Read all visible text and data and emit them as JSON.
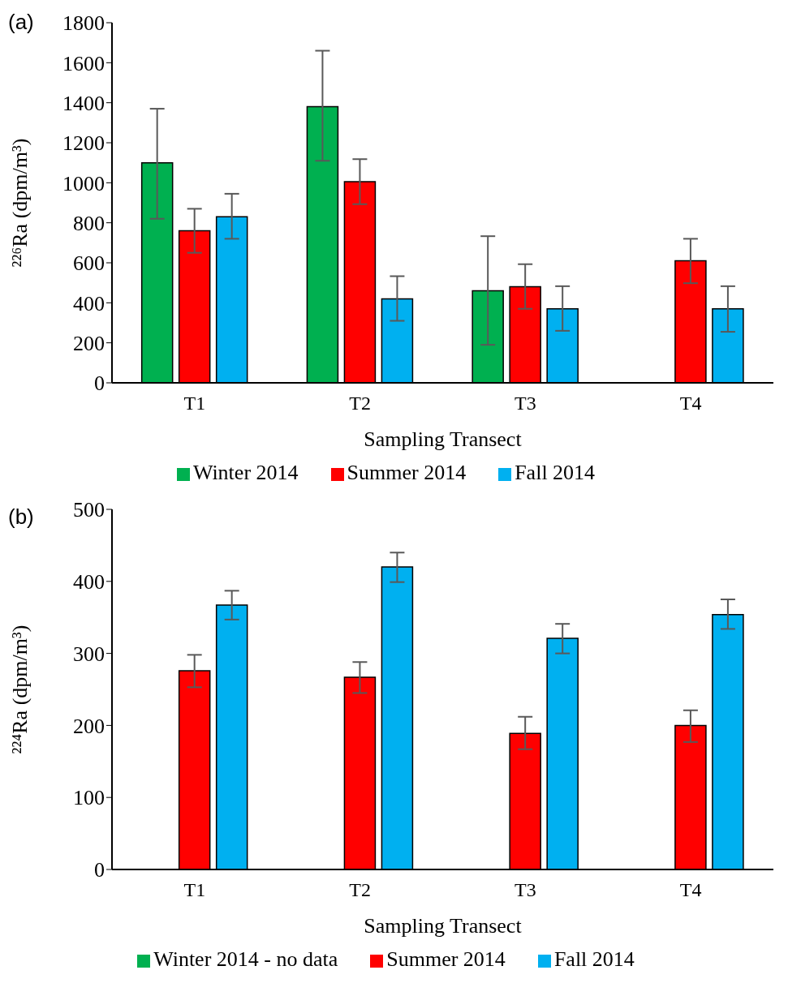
{
  "chart_data": [
    {
      "type": "bar",
      "annotations": [
        "(a)"
      ],
      "ylabel": "²²⁶Ra (dpm/m³)",
      "xlabel": "Sampling Transect",
      "categories": [
        "T1",
        "T2",
        "T3",
        "T4"
      ],
      "ylim": [
        0,
        1800
      ],
      "yticks": [
        0,
        200,
        400,
        600,
        800,
        1000,
        1200,
        1400,
        1600,
        1800
      ],
      "grid": false,
      "legend": "bottom",
      "series": [
        {
          "name": "Winter 2014",
          "color": "#00b050",
          "values": [
            1100,
            1380,
            460,
            null
          ],
          "errors": [
            [
              820,
              1370
            ],
            [
              1110,
              1660
            ],
            [
              190,
              733
            ],
            null
          ]
        },
        {
          "name": "Summer 2014",
          "color": "#ff0000",
          "values": [
            760,
            1005,
            480,
            610
          ],
          "errors": [
            [
              650,
              870
            ],
            [
              893,
              1118
            ],
            [
              370,
              593
            ],
            [
              498,
              720
            ]
          ]
        },
        {
          "name": "Fall 2014",
          "color": "#00b0f0",
          "values": [
            830,
            420,
            370,
            370
          ],
          "errors": [
            [
              720,
              945
            ],
            [
              310,
              533
            ],
            [
              260,
              483
            ],
            [
              255,
              483
            ]
          ]
        }
      ]
    },
    {
      "type": "bar",
      "annotations": [
        "(b)"
      ],
      "ylabel": "²²⁴Ra (dpm/m³)",
      "xlabel": "Sampling Transect",
      "categories": [
        "T1",
        "T2",
        "T3",
        "T4"
      ],
      "ylim": [
        0,
        500
      ],
      "yticks": [
        0,
        100,
        200,
        300,
        400,
        500
      ],
      "grid": false,
      "legend": "bottom",
      "series": [
        {
          "name": "Winter 2014 - no data",
          "color": "#00b050",
          "values": [
            null,
            null,
            null,
            null
          ]
        },
        {
          "name": "Summer 2014",
          "color": "#ff0000",
          "values": [
            276,
            267,
            189,
            200
          ],
          "errors": [
            [
              253,
              298
            ],
            [
              245,
              288
            ],
            [
              167,
              212
            ],
            [
              177,
              221
            ]
          ]
        },
        {
          "name": "Fall 2014",
          "color": "#00b0f0",
          "values": [
            367,
            420,
            321,
            354
          ],
          "errors": [
            [
              347,
              387
            ],
            [
              399,
              440
            ],
            [
              300,
              341
            ],
            [
              334,
              375
            ]
          ]
        }
      ]
    }
  ]
}
